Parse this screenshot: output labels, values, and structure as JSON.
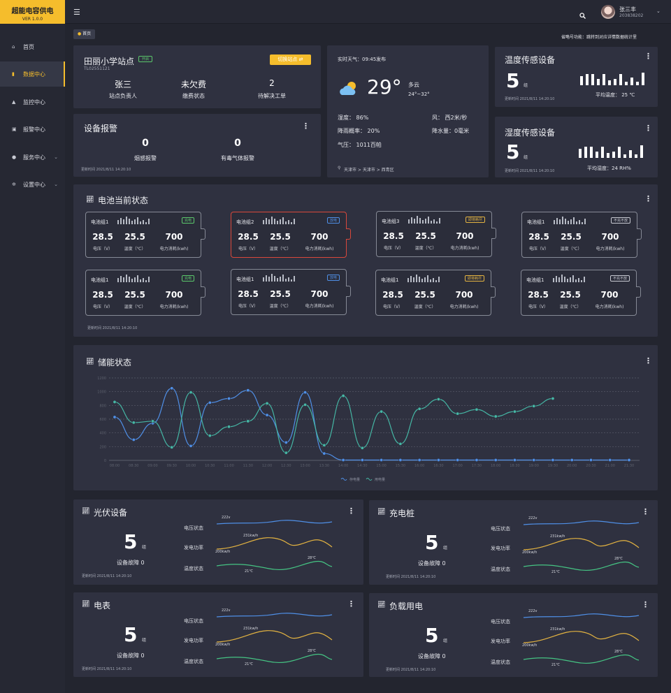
{
  "app": {
    "name": "超能电容供电",
    "version": "VER 1.0.0"
  },
  "header": {
    "user_name": "张三丰",
    "user_id": "203838202"
  },
  "sidebar": {
    "items": [
      {
        "label": "首页",
        "icon": "home-icon"
      },
      {
        "label": "数据中心",
        "icon": "chart-icon",
        "active": true
      },
      {
        "label": "监控中心",
        "icon": "monitor-icon"
      },
      {
        "label": "报警中心",
        "icon": "alarm-icon"
      },
      {
        "label": "服务中心",
        "icon": "service-icon",
        "has_children": true
      },
      {
        "label": "设置中心",
        "icon": "settings-icon",
        "has_children": true
      }
    ]
  },
  "breadcrumb": "首页",
  "notice": "省略号功能：跳转到对应详情数据统计里",
  "station": {
    "name": "田丽小学站点",
    "status": "开启",
    "code": "TL02551121",
    "switch_label": "切换站点",
    "stats": [
      {
        "value": "张三",
        "label": "站点负责人"
      },
      {
        "value": "未欠费",
        "label": "缴费状态"
      },
      {
        "value": "2",
        "label": "待解决工单"
      }
    ]
  },
  "alarm": {
    "title": "设备报警",
    "smoke": {
      "value": "0",
      "label": "烟感报警"
    },
    "gas": {
      "value": "0",
      "label": "有毒气体报警"
    },
    "updated": "更新时间 2021/8/11 14:20:10"
  },
  "weather": {
    "publish": "实时天气：09:45发布",
    "temp": "29°",
    "condition": "多云",
    "range": "24°~32°",
    "humidity": "湿度： 86%",
    "wind": "风： 西2米/秒",
    "rain_prob": "降雨概率： 20%",
    "rainfall": "降水量：0毫米",
    "pressure": "气压： 1011百帕",
    "location": "天津市 > 天津市 > 西青区"
  },
  "temp_sensor": {
    "title": "温度传感设备",
    "count": "5",
    "unit": "组",
    "updated": "更新时间 2021/8/11 14:20:10",
    "avg": "平均温度： 25 ℃",
    "bars": [
      0.7,
      0.9,
      0.9,
      0.5,
      0.9,
      0.4,
      0.5,
      0.9,
      0.3,
      0.6,
      0.3,
      1.0
    ]
  },
  "hum_sensor": {
    "title": "湿度传感设备",
    "count": "5",
    "unit": "组",
    "updated": "更新时间 2021/8/11 14:20:10",
    "avg": "平均湿度：24 RH%",
    "bars": [
      0.7,
      0.9,
      0.9,
      0.5,
      0.9,
      0.4,
      0.5,
      0.9,
      0.3,
      0.6,
      0.3,
      1.0
    ]
  },
  "battery": {
    "title": "电池当前状态",
    "updated": "更新时间 2021/8/11 14:20:10",
    "labels": {
      "voltage": "电压（V）",
      "temperature": "温度（℃）",
      "power": "电力消耗(kwh)"
    },
    "groups": [
      {
        "name": "电池组1",
        "status": "充电",
        "status_color": "#5bc86b",
        "voltage": "28.5",
        "temp": "25.5",
        "power": "700"
      },
      {
        "name": "电池组2",
        "status": "放电",
        "status_color": "#4f8fe6",
        "voltage": "28.5",
        "temp": "25.5",
        "power": "700",
        "alert": true
      },
      {
        "name": "电池组3",
        "status": "即将耗尽",
        "status_color": "#e3b341",
        "voltage": "28.5",
        "temp": "25.5",
        "power": "700"
      },
      {
        "name": "电池组1",
        "status": "不充不放",
        "status_color": "#c8cad2",
        "voltage": "28.5",
        "temp": "25.5",
        "power": "700"
      },
      {
        "name": "电池组1",
        "status": "充电",
        "status_color": "#5bc86b",
        "voltage": "28.5",
        "temp": "25.5",
        "power": "700"
      },
      {
        "name": "电池组1",
        "status": "放电",
        "status_color": "#4f8fe6",
        "voltage": "28.5",
        "temp": "25.5",
        "power": "700"
      },
      {
        "name": "电池组1",
        "status": "即将耗尽",
        "status_color": "#e3b341",
        "voltage": "28.5",
        "temp": "25.5",
        "power": "700"
      },
      {
        "name": "电池组1",
        "status": "不充不放",
        "status_color": "#c8cad2",
        "voltage": "28.5",
        "temp": "25.5",
        "power": "700"
      }
    ]
  },
  "chart_data": {
    "type": "line",
    "title": "储能状态",
    "ylim": [
      0,
      1200
    ],
    "y_ticks": [
      0,
      200,
      400,
      600,
      800,
      1000,
      1200
    ],
    "x": [
      "08:00",
      "08:30",
      "09:00",
      "09:30",
      "10:00",
      "10:30",
      "11:00",
      "11:30",
      "12:00",
      "12:30",
      "13:00",
      "13:30",
      "14:00",
      "14:30",
      "15:00",
      "15:30",
      "16:00",
      "16:30",
      "17:00",
      "17:30",
      "18:00",
      "18:30",
      "19:00",
      "19:30",
      "20:00",
      "20:30",
      "21:00",
      "21:30"
    ],
    "series": [
      {
        "name": "存电量",
        "color": "#4f8fe6",
        "values": [
          630,
          300,
          540,
          1050,
          210,
          840,
          900,
          1020,
          660,
          260,
          990,
          100,
          5,
          5,
          5,
          5,
          5,
          5,
          5,
          5,
          5,
          5,
          5,
          5,
          5,
          5,
          5,
          5
        ]
      },
      {
        "name": "用电量",
        "color": "#45b6a4",
        "values": [
          850,
          550,
          570,
          190,
          990,
          360,
          490,
          570,
          830,
          110,
          810,
          220,
          940,
          180,
          710,
          240,
          750,
          890,
          680,
          740,
          640,
          710,
          790,
          900,
          null,
          null,
          null,
          null
        ]
      }
    ],
    "grid": true,
    "legend": "bottom"
  },
  "devices": [
    {
      "title": "光伏设备",
      "count": "5",
      "unit": "组",
      "fault": "设备故障 0",
      "updated": "更新时间 2021/8/11 14:20:10",
      "rows": [
        "电压状态",
        "发电功率",
        "温度状态"
      ],
      "v": "222v",
      "p": "231kw/h",
      "p2": "200kw/h",
      "t": "28℃",
      "t2": "21℃"
    },
    {
      "title": "充电桩",
      "count": "5",
      "unit": "组",
      "fault": "设备故障 0",
      "updated": "更新时间 2021/8/11 14:20:10",
      "rows": [
        "电压状态",
        "发电功率",
        "温度状态"
      ],
      "v": "222v",
      "p": "231kw/h",
      "p2": "200kw/h",
      "t": "28℃",
      "t2": "21℃"
    },
    {
      "title": "电表",
      "count": "5",
      "unit": "组",
      "fault": "设备故障 0",
      "updated": "更新时间 2021/8/11 14:20:10",
      "rows": [
        "电压状态",
        "发电功率",
        "温度状态"
      ],
      "v": "222v",
      "p": "231kw/h",
      "p2": "200kw/h",
      "t": "28℃",
      "t2": "21℃"
    },
    {
      "title": "负载用电",
      "count": "5",
      "unit": "组",
      "fault": "设备故障 0",
      "updated": "更新时间 2021/8/11 14:20:10",
      "rows": [
        "电压状态",
        "发电功率",
        "温度状态"
      ],
      "v": "222v",
      "p": "231kw/h",
      "p2": "200kw/h",
      "t": "28℃",
      "t2": "21℃"
    }
  ],
  "colors": {
    "accent": "#f5bd2c",
    "bg": "#23252f",
    "card": "#2f3140",
    "blue": "#4f8fe6",
    "green": "#45b6a4",
    "yellow": "#e3b341",
    "alert": "#d9483b"
  }
}
